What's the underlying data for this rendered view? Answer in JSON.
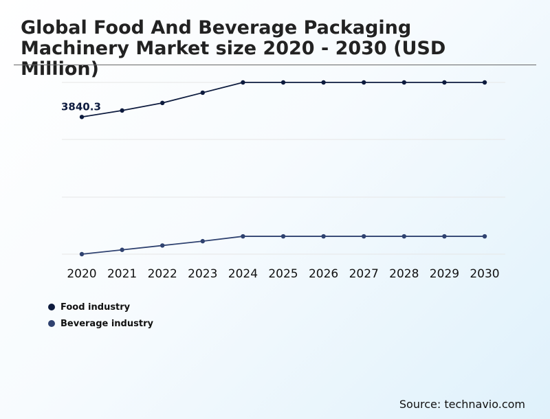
{
  "chart_data": {
    "type": "line",
    "title": "Global Food And Beverage Packaging Machinery Market size 2020 - 2030 (USD Million)",
    "xlabel": "",
    "ylabel": "",
    "categories": [
      "2020",
      "2021",
      "2022",
      "2023",
      "2024",
      "2025",
      "2026",
      "2027",
      "2028",
      "2029",
      "2030"
    ],
    "series": [
      {
        "name": "Food industry",
        "color": "#0d1b3e",
        "values": [
          3840.3,
          3960,
          4100,
          4290,
          4480,
          4480,
          4480,
          4480,
          4480,
          4480,
          4480
        ],
        "label_first": "3840.3"
      },
      {
        "name": "Beverage industry",
        "color": "#2f4270",
        "values": [
          1300,
          1380,
          1460,
          1540,
          1630,
          1630,
          1630,
          1630,
          1630,
          1630,
          1630
        ]
      }
    ],
    "ylim": [
      1300,
      4480
    ],
    "grid": true,
    "legend_position": "bottom-left"
  },
  "source": "Source: technavio.com"
}
